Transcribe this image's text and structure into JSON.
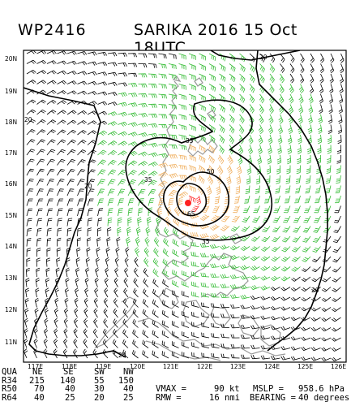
{
  "title": {
    "storm_id": "WP2416",
    "name_time": "SARIKA 2016 15 Oct 18UTC"
  },
  "axes": {
    "lat_labels": [
      "20N",
      "19N",
      "18N",
      "17N",
      "16N",
      "15N",
      "14N",
      "13N",
      "12N",
      "11N"
    ],
    "lon_labels": [
      "117E",
      "118E",
      "119E",
      "120E",
      "121E",
      "122E",
      "123E",
      "124E",
      "125E",
      "126E"
    ]
  },
  "contour_labels": [
    "20",
    "20",
    "20",
    "35",
    "35",
    "35",
    "50",
    "65",
    "20",
    "20"
  ],
  "colors": {
    "land": "#999999",
    "barb_low": "#000000",
    "barb_34": "#33bb33",
    "barb_50": "#f0b060",
    "barb_64": "#ff3333",
    "center": "#ff2222"
  },
  "table": {
    "header": {
      "label": "QUA",
      "cols": [
        "NE",
        "SE",
        "SW",
        "NW"
      ]
    },
    "rows": [
      {
        "label": "R34",
        "values": [
          "215",
          "140",
          "55",
          "150"
        ]
      },
      {
        "label": "R50",
        "values": [
          "70",
          "40",
          "30",
          "40"
        ]
      },
      {
        "label": "R64",
        "values": [
          "40",
          "25",
          "20",
          "25"
        ]
      }
    ],
    "vmax_label": "VMAX =",
    "vmax_value": "90 kt",
    "mslp_label": "MSLP =",
    "mslp_value": "958.6 hPa",
    "rmw_label": "RMW =",
    "rmw_value": "16 nmi",
    "bearing_label": "BEARING =",
    "bearing_value": "40 degrees"
  }
}
